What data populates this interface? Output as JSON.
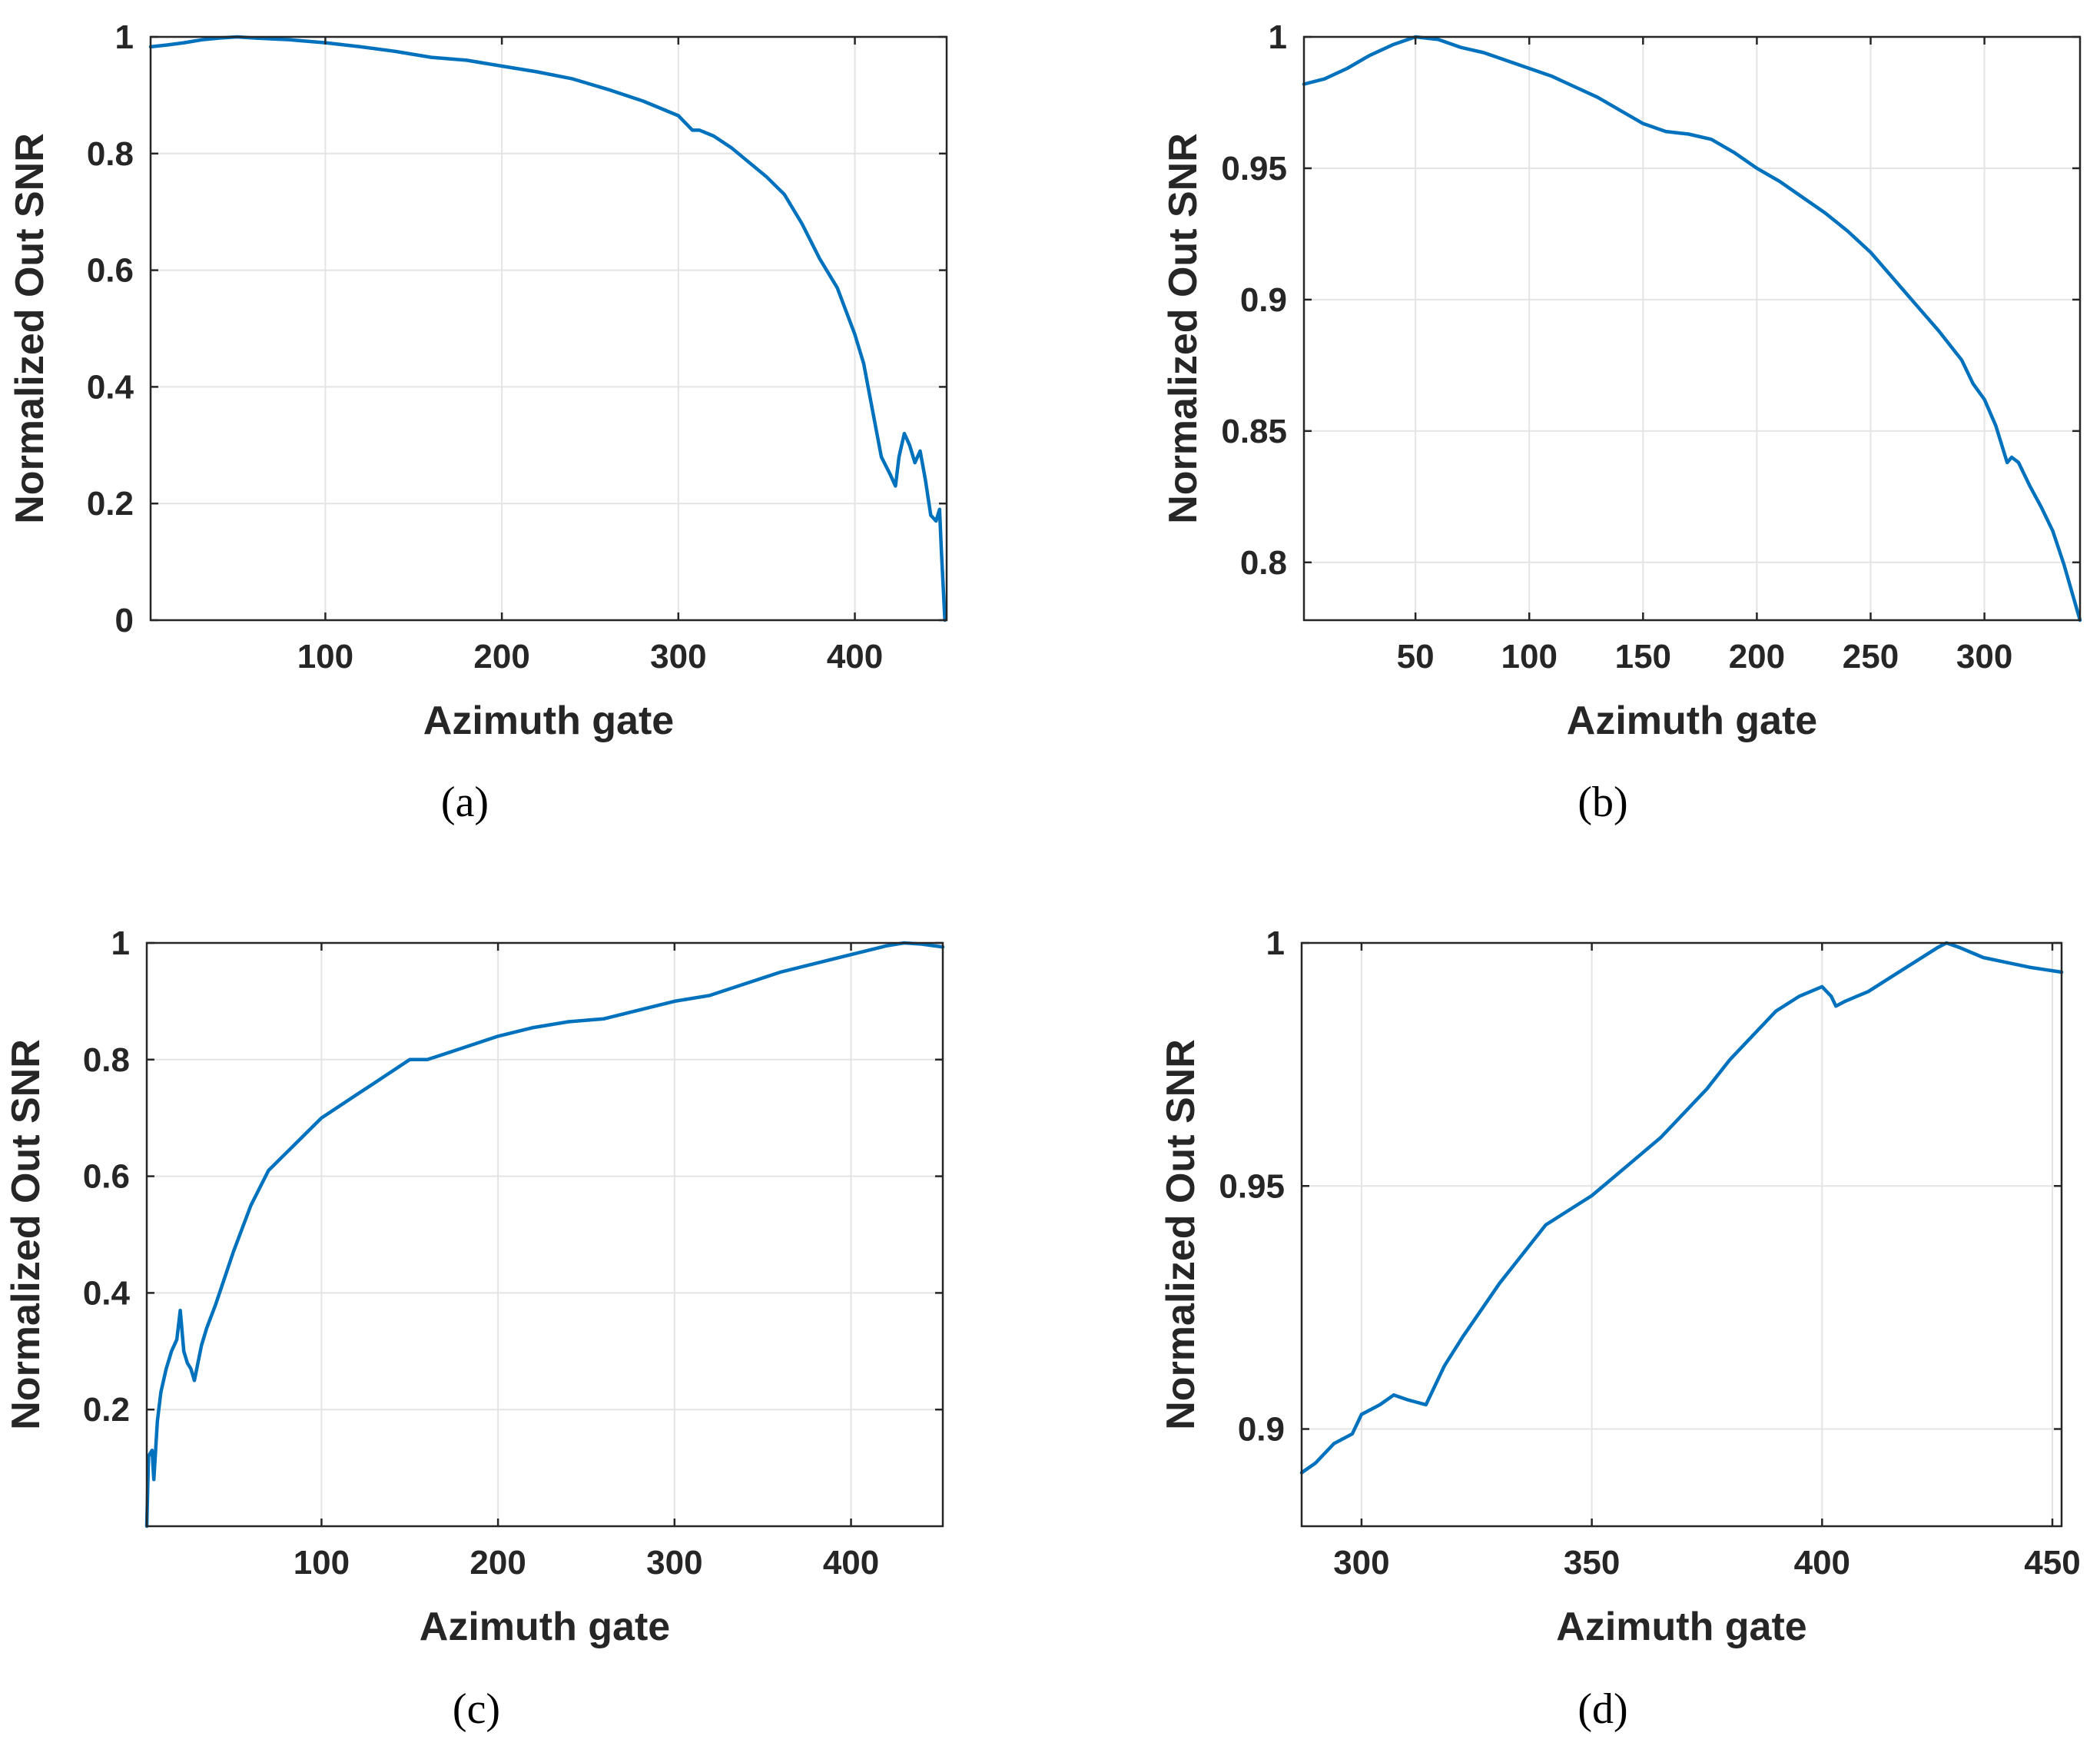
{
  "colors": {
    "series": "#0072BD",
    "axis": "#262626",
    "grid": "#e4e4e4"
  },
  "chart_data": [
    {
      "id": "a",
      "caption": "(a)",
      "type": "line",
      "xlabel": "Azimuth gate",
      "ylabel": "Normalized Out SNR",
      "xlim": [
        1,
        452
      ],
      "ylim": [
        0,
        1
      ],
      "xticks": [
        100,
        200,
        300,
        400
      ],
      "xtick_labels": [
        "100",
        "200",
        "300",
        "400"
      ],
      "yticks": [
        0,
        0.2,
        0.4,
        0.6,
        0.8,
        1
      ],
      "ytick_labels": [
        "0",
        "0.2",
        "0.4",
        "0.6",
        "0.8",
        "1"
      ],
      "grid": true,
      "series": [
        {
          "name": "Normalized Out SNR",
          "x": [
            1,
            10,
            20,
            30,
            40,
            50,
            60,
            80,
            100,
            120,
            140,
            160,
            180,
            200,
            220,
            240,
            260,
            280,
            300,
            308,
            312,
            320,
            330,
            340,
            350,
            360,
            370,
            380,
            390,
            400,
            405,
            410,
            415,
            420,
            423,
            425,
            428,
            431,
            434,
            437,
            440,
            443,
            446,
            448,
            449,
            450,
            451
          ],
          "y": [
            0.983,
            0.986,
            0.99,
            0.995,
            0.998,
            1.0,
            0.998,
            0.995,
            0.99,
            0.983,
            0.975,
            0.965,
            0.96,
            0.95,
            0.94,
            0.928,
            0.91,
            0.89,
            0.865,
            0.84,
            0.84,
            0.83,
            0.81,
            0.785,
            0.76,
            0.73,
            0.68,
            0.62,
            0.57,
            0.49,
            0.44,
            0.36,
            0.28,
            0.25,
            0.23,
            0.28,
            0.32,
            0.3,
            0.27,
            0.29,
            0.24,
            0.18,
            0.17,
            0.19,
            0.12,
            0.06,
            0.0
          ]
        }
      ]
    },
    {
      "id": "b",
      "caption": "(b)",
      "type": "line",
      "xlabel": "Azimuth gate",
      "ylabel": "Normalized Out SNR",
      "xlim": [
        1,
        342
      ],
      "ylim": [
        0.778,
        1.0
      ],
      "xticks": [
        50,
        100,
        150,
        200,
        250,
        300
      ],
      "xtick_labels": [
        "50",
        "100",
        "150",
        "200",
        "250",
        "300"
      ],
      "yticks": [
        0.8,
        0.85,
        0.9,
        0.95,
        1
      ],
      "ytick_labels": [
        "0.8",
        "0.85",
        "0.9",
        "0.95",
        "1"
      ],
      "grid": true,
      "series": [
        {
          "name": "Normalized Out SNR",
          "x": [
            1,
            10,
            20,
            30,
            40,
            50,
            60,
            70,
            80,
            90,
            100,
            110,
            120,
            130,
            140,
            150,
            160,
            170,
            180,
            190,
            200,
            210,
            220,
            230,
            240,
            250,
            260,
            270,
            280,
            290,
            295,
            300,
            305,
            310,
            312,
            315,
            320,
            325,
            330,
            335,
            339,
            342
          ],
          "y": [
            0.982,
            0.984,
            0.988,
            0.993,
            0.997,
            1.0,
            0.999,
            0.996,
            0.994,
            0.991,
            0.988,
            0.985,
            0.981,
            0.977,
            0.972,
            0.967,
            0.964,
            0.963,
            0.961,
            0.956,
            0.95,
            0.945,
            0.939,
            0.933,
            0.926,
            0.918,
            0.908,
            0.898,
            0.888,
            0.877,
            0.868,
            0.862,
            0.852,
            0.838,
            0.84,
            0.838,
            0.829,
            0.821,
            0.812,
            0.799,
            0.787,
            0.778
          ]
        }
      ]
    },
    {
      "id": "c",
      "caption": "(c)",
      "type": "line",
      "xlabel": "Azimuth gate",
      "ylabel": "Normalized Out SNR",
      "xlim": [
        1,
        452
      ],
      "ylim": [
        0,
        1
      ],
      "xticks": [
        100,
        200,
        300,
        400
      ],
      "xtick_labels": [
        "100",
        "200",
        "300",
        "400"
      ],
      "yticks": [
        0.2,
        0.4,
        0.6,
        0.8,
        1
      ],
      "ytick_labels": [
        "0.2",
        "0.4",
        "0.6",
        "0.8",
        "1"
      ],
      "grid": true,
      "series": [
        {
          "name": "Normalized Out SNR",
          "x": [
            1,
            2,
            4,
            5,
            7,
            9,
            12,
            15,
            18,
            20,
            22,
            24,
            26,
            28,
            32,
            35,
            40,
            50,
            60,
            70,
            80,
            90,
            100,
            110,
            120,
            130,
            140,
            150,
            160,
            170,
            180,
            190,
            200,
            220,
            240,
            260,
            280,
            300,
            320,
            340,
            360,
            380,
            400,
            420,
            430,
            440,
            452
          ],
          "y": [
            0.0,
            0.12,
            0.13,
            0.08,
            0.18,
            0.23,
            0.27,
            0.3,
            0.32,
            0.37,
            0.3,
            0.28,
            0.27,
            0.25,
            0.31,
            0.34,
            0.38,
            0.47,
            0.55,
            0.61,
            0.64,
            0.67,
            0.7,
            0.72,
            0.74,
            0.76,
            0.78,
            0.8,
            0.8,
            0.81,
            0.82,
            0.83,
            0.84,
            0.855,
            0.865,
            0.87,
            0.885,
            0.9,
            0.91,
            0.93,
            0.95,
            0.965,
            0.98,
            0.995,
            1.0,
            0.998,
            0.993
          ]
        }
      ]
    },
    {
      "id": "d",
      "caption": "(d)",
      "type": "line",
      "xlabel": "Azimuth gate",
      "ylabel": "Normalized Out SNR",
      "xlim": [
        287,
        452
      ],
      "ylim": [
        0.88,
        1.0
      ],
      "xticks": [
        300,
        350,
        400,
        450
      ],
      "xtick_labels": [
        "300",
        "350",
        "400",
        "450"
      ],
      "yticks": [
        0.9,
        0.95,
        1
      ],
      "ytick_labels": [
        "0.9",
        "0.95",
        "1"
      ],
      "grid": true,
      "series": [
        {
          "name": "Normalized Out SNR",
          "x": [
            287,
            290,
            294,
            298,
            300,
            304,
            307,
            310,
            314,
            318,
            322,
            330,
            340,
            345,
            350,
            355,
            360,
            365,
            370,
            375,
            380,
            385,
            390,
            395,
            400,
            402,
            403,
            405,
            410,
            415,
            420,
            425,
            427,
            430,
            435,
            440,
            445,
            452
          ],
          "y": [
            0.891,
            0.893,
            0.897,
            0.899,
            0.903,
            0.905,
            0.907,
            0.906,
            0.905,
            0.913,
            0.919,
            0.93,
            0.942,
            0.945,
            0.948,
            0.952,
            0.956,
            0.96,
            0.965,
            0.97,
            0.976,
            0.981,
            0.986,
            0.989,
            0.991,
            0.989,
            0.987,
            0.988,
            0.99,
            0.993,
            0.996,
            0.999,
            1.0,
            0.999,
            0.997,
            0.996,
            0.995,
            0.994
          ]
        }
      ]
    }
  ]
}
